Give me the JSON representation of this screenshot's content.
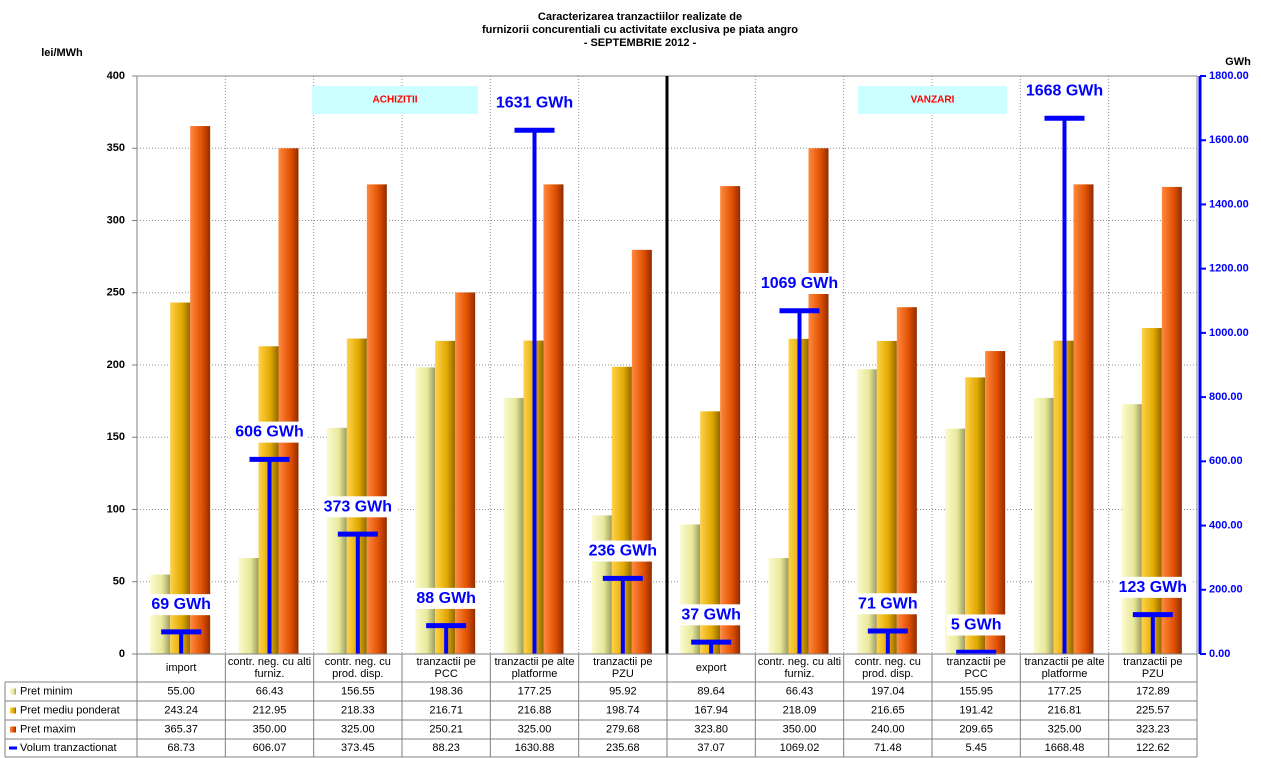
{
  "chart_data": {
    "type": "bar",
    "title": [
      "Caracterizarea tranzactiilor realizate de",
      "furnizorii concurentiali cu activitate exclusiva pe piata angro",
      "- SEPTEMBRIE 2012 -"
    ],
    "y_label": "lei/MWh",
    "y2_label": "GWh",
    "section_labels": [
      "ACHIZITII",
      "VANZARI"
    ],
    "categories": [
      "import",
      "contr. neg. cu alti furniz.",
      "contr. neg. cu prod. disp.",
      "tranzactii pe PCC",
      "tranzactii pe alte platforme",
      "tranzactii pe PZU",
      "export",
      "contr. neg. cu alti furniz.",
      "contr. neg. cu prod. disp.",
      "tranzactii pe PCC",
      "tranzactii pe alte platforme",
      "tranzactii pe PZU"
    ],
    "series": [
      {
        "name": "Pret minim",
        "color": "#e8e89a",
        "values": [
          55.0,
          66.43,
          156.55,
          198.36,
          177.25,
          95.92,
          89.64,
          66.43,
          197.04,
          155.95,
          177.25,
          172.89
        ],
        "table_labels": [
          "55.00",
          "66.43",
          "156.55",
          "198.36",
          "177.25",
          "95.92",
          "89.64",
          "66.43",
          "197.04",
          "155.95",
          "177.25",
          "172.89"
        ]
      },
      {
        "name": "Pret mediu ponderat",
        "color": "#e0a800",
        "values": [
          243.24,
          212.95,
          218.33,
          216.71,
          216.88,
          198.74,
          167.94,
          218.09,
          216.65,
          191.42,
          216.81,
          225.57
        ],
        "table_labels": [
          "243.24",
          "212.95",
          "218.33",
          "216.71",
          "216.88",
          "198.74",
          "167.94",
          "218.09",
          "216.65",
          "191.42",
          "216.81",
          "225.57"
        ]
      },
      {
        "name": "Pret maxim",
        "color": "#e05000",
        "values": [
          365.37,
          350.0,
          325.0,
          250.21,
          325.0,
          279.68,
          323.8,
          350.0,
          240.0,
          209.65,
          325.0,
          323.23
        ],
        "table_labels": [
          "365.37",
          "350.00",
          "325.00",
          "250.21",
          "325.00",
          "279.68",
          "323.80",
          "350.00",
          "240.00",
          "209.65",
          "325.00",
          "323.23"
        ]
      },
      {
        "name": "Volum tranzactionat",
        "color": "#0000ff",
        "axis": "y2",
        "values": [
          68.73,
          606.07,
          373.45,
          88.23,
          1630.88,
          235.68,
          37.07,
          1069.02,
          71.48,
          5.45,
          1668.48,
          122.62
        ],
        "value_labels": [
          "69 GWh",
          "606 GWh",
          "373 GWh",
          "88 GWh",
          "1631 GWh",
          "236 GWh",
          "37 GWh",
          "1069 GWh",
          "71 GWh",
          "5 GWh",
          "1668 GWh",
          "123 GWh"
        ],
        "table_labels": [
          "68.73",
          "606.07",
          "373.45",
          "88.23",
          "1630.88",
          "235.68",
          "37.07",
          "1069.02",
          "71.48",
          "5.45",
          "1668.48",
          "122.62"
        ]
      }
    ],
    "ylim": [
      0,
      400
    ],
    "yticks": [
      0,
      50,
      100,
      150,
      200,
      250,
      300,
      350,
      400
    ],
    "y2lim": [
      0,
      1800
    ],
    "y2ticks": [
      {
        "value": 0,
        "label": "0.00"
      },
      {
        "value": 200,
        "label": "200.00"
      },
      {
        "value": 400,
        "label": "400.00"
      },
      {
        "value": 600,
        "label": "600.00"
      },
      {
        "value": 800,
        "label": "800.00"
      },
      {
        "value": 1000,
        "label": "1000.00"
      },
      {
        "value": 1200,
        "label": "1200.00"
      },
      {
        "value": 1400,
        "label": "1400.00"
      },
      {
        "value": 1600,
        "label": "1600.00"
      },
      {
        "value": 1800,
        "label": "1800.00"
      }
    ],
    "grid": true
  }
}
